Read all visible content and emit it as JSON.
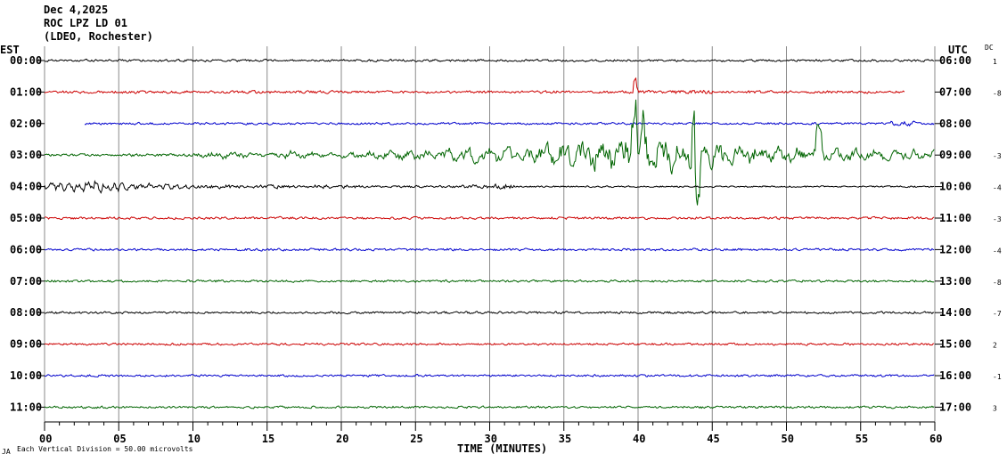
{
  "header": {
    "date": "Dec 4,2025",
    "station": "ROC LPZ LD 01",
    "location": "(LDEO, Rochester)",
    "left_tz": "EST",
    "right_tz": "UTC",
    "dc_label": "DC"
  },
  "footer": {
    "xlabel": "TIME (MINUTES)",
    "scale_note": "Each Vertical Division =    50.00 microvolts",
    "corner_mark": "JA"
  },
  "chart_data": {
    "type": "line",
    "xlim": [
      0,
      60
    ],
    "x_ticks": [
      "00",
      "05",
      "10",
      "15",
      "20",
      "25",
      "30",
      "35",
      "40",
      "45",
      "50",
      "55",
      "60"
    ],
    "rows": [
      {
        "est": "00:00",
        "utc": "06:00",
        "dc": "1",
        "color": "#000000",
        "start": 0,
        "end": 60,
        "noise": 3.0,
        "variant": "quiet"
      },
      {
        "est": "01:00",
        "utc": "07:00",
        "dc": "-8",
        "color": "#cc0000",
        "start": 0,
        "end": 58,
        "noise": 3.5,
        "variant": "red_late_spikes"
      },
      {
        "est": "02:00",
        "utc": "08:00",
        "dc": "",
        "color": "#0000cc",
        "start": 2.7,
        "end": 60,
        "noise": 3.0,
        "variant": "blue_late"
      },
      {
        "est": "03:00",
        "utc": "09:00",
        "dc": "-3",
        "color": "#006400",
        "start": 0,
        "end": 60,
        "noise": 4.0,
        "variant": "earthquake"
      },
      {
        "est": "04:00",
        "utc": "10:00",
        "dc": "-4",
        "color": "#000000",
        "start": 0,
        "end": 60,
        "noise": 3.5,
        "variant": "after_event"
      },
      {
        "est": "05:00",
        "utc": "11:00",
        "dc": "-3",
        "color": "#cc0000",
        "start": 0,
        "end": 60,
        "noise": 3.2,
        "variant": "quiet"
      },
      {
        "est": "06:00",
        "utc": "12:00",
        "dc": "-4",
        "color": "#0000cc",
        "start": 0,
        "end": 60,
        "noise": 3.2,
        "variant": "quiet"
      },
      {
        "est": "07:00",
        "utc": "13:00",
        "dc": "-8",
        "color": "#006400",
        "start": 0,
        "end": 60,
        "noise": 3.0,
        "variant": "quiet"
      },
      {
        "est": "08:00",
        "utc": "14:00",
        "dc": "-7",
        "color": "#000000",
        "start": 0,
        "end": 60,
        "noise": 3.0,
        "variant": "quiet"
      },
      {
        "est": "09:00",
        "utc": "15:00",
        "dc": "2",
        "color": "#cc0000",
        "start": 0,
        "end": 60,
        "noise": 3.0,
        "variant": "quiet"
      },
      {
        "est": "10:00",
        "utc": "16:00",
        "dc": "-1",
        "color": "#0000cc",
        "start": 0,
        "end": 60,
        "noise": 3.0,
        "variant": "quiet"
      },
      {
        "est": "11:00",
        "utc": "17:00",
        "dc": "3",
        "color": "#006400",
        "start": 0,
        "end": 60,
        "noise": 3.0,
        "variant": "quiet"
      }
    ]
  }
}
